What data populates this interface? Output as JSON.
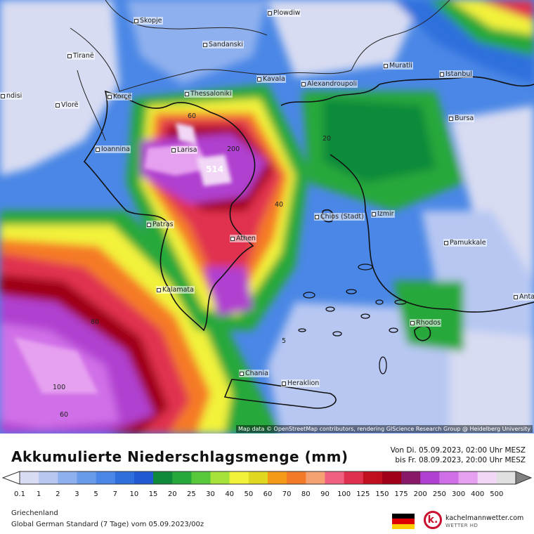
{
  "map": {
    "cities": [
      {
        "name": "Skopje"
      },
      {
        "name": "Plowdiw"
      },
      {
        "name": "Sandanski"
      },
      {
        "name": "Tiranë"
      },
      {
        "name": "Muratli"
      },
      {
        "name": "Istanbul"
      },
      {
        "name": "Kavala"
      },
      {
        "name": "Alexandroupoli"
      },
      {
        "name": "Thessaloniki"
      },
      {
        "name": "Korçë"
      },
      {
        "name": "Vlorë"
      },
      {
        "name": "Bursa"
      },
      {
        "name": "Ioannina"
      },
      {
        "name": "Larisa"
      },
      {
        "name": "Chios (Stadt)"
      },
      {
        "name": "Izmir"
      },
      {
        "name": "Patras"
      },
      {
        "name": "Athen"
      },
      {
        "name": "Pamukkale"
      },
      {
        "name": "Kalamata"
      },
      {
        "name": "Antal"
      },
      {
        "name": "Rhodos"
      },
      {
        "name": "Chania"
      },
      {
        "name": "Heraklion"
      },
      {
        "name": "ndisi"
      }
    ],
    "contour_labels": [
      "60",
      "200",
      "514",
      "40",
      "20",
      "80",
      "5",
      "100",
      "60"
    ],
    "attribution": "Map data © OpenStreetMap contributors, rendering GIScience Research Group @ Heidelberg University"
  },
  "legend": {
    "title": "Akkumulierte Niederschlagsmenge (mm)",
    "period_from": "Von Di. 05.09.2023, 02:00 Uhr MESZ",
    "period_to": "bis Fr. 08.09.2023, 20:00 Uhr MESZ",
    "levels": [
      "0.1",
      "1",
      "2",
      "3",
      "5",
      "7",
      "10",
      "15",
      "20",
      "25",
      "30",
      "40",
      "50",
      "60",
      "70",
      "80",
      "90",
      "100",
      "125",
      "150",
      "175",
      "200",
      "250",
      "300",
      "400",
      "500"
    ],
    "colors": [
      "#d8dcf2",
      "#b7c7f2",
      "#8fb0ee",
      "#6a9bea",
      "#4a87e6",
      "#2f6fdc",
      "#1f5ad2",
      "#0f8a3a",
      "#27a83a",
      "#56c83a",
      "#a5e33a",
      "#f2f23a",
      "#e0d820",
      "#f59a18",
      "#f57a28",
      "#f5a070",
      "#f06080",
      "#e03050",
      "#c01020",
      "#a00018",
      "#8a1868",
      "#b040d0",
      "#d070e8",
      "#e6a0f0",
      "#f2d8f6",
      "#e0e0e0"
    ]
  },
  "footer": {
    "region": "Griechenland",
    "model": "Global German Standard (7 Tage) vom 05.09.2023/00z",
    "brand": "kachelmannwetter.com",
    "brand_sub": "WETTER HD",
    "logo_letter": "k."
  }
}
